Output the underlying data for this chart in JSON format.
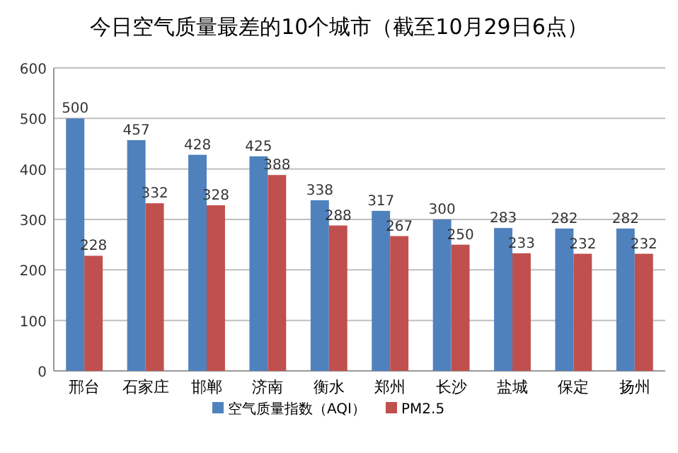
{
  "chart_data": {
    "type": "bar",
    "title": "今日空气质量最差的10个城市（截至10月29日6点）",
    "categories": [
      "邢台",
      "石家庄",
      "邯郸",
      "济南",
      "衡水",
      "郑州",
      "长沙",
      "盐城",
      "保定",
      "扬州"
    ],
    "series": [
      {
        "name": "空气质量指数（AQI）",
        "color": "#4f81bd",
        "values": [
          500,
          457,
          428,
          425,
          338,
          317,
          300,
          283,
          282,
          282
        ]
      },
      {
        "name": "PM2.5",
        "color": "#c0504d",
        "values": [
          228,
          332,
          328,
          388,
          288,
          267,
          250,
          233,
          232,
          232
        ]
      }
    ],
    "ylim": [
      0,
      600
    ],
    "yticks": [
      0,
      100,
      200,
      300,
      400,
      500,
      600
    ],
    "grid": "y",
    "legend": "bottom",
    "data_labels": true
  }
}
